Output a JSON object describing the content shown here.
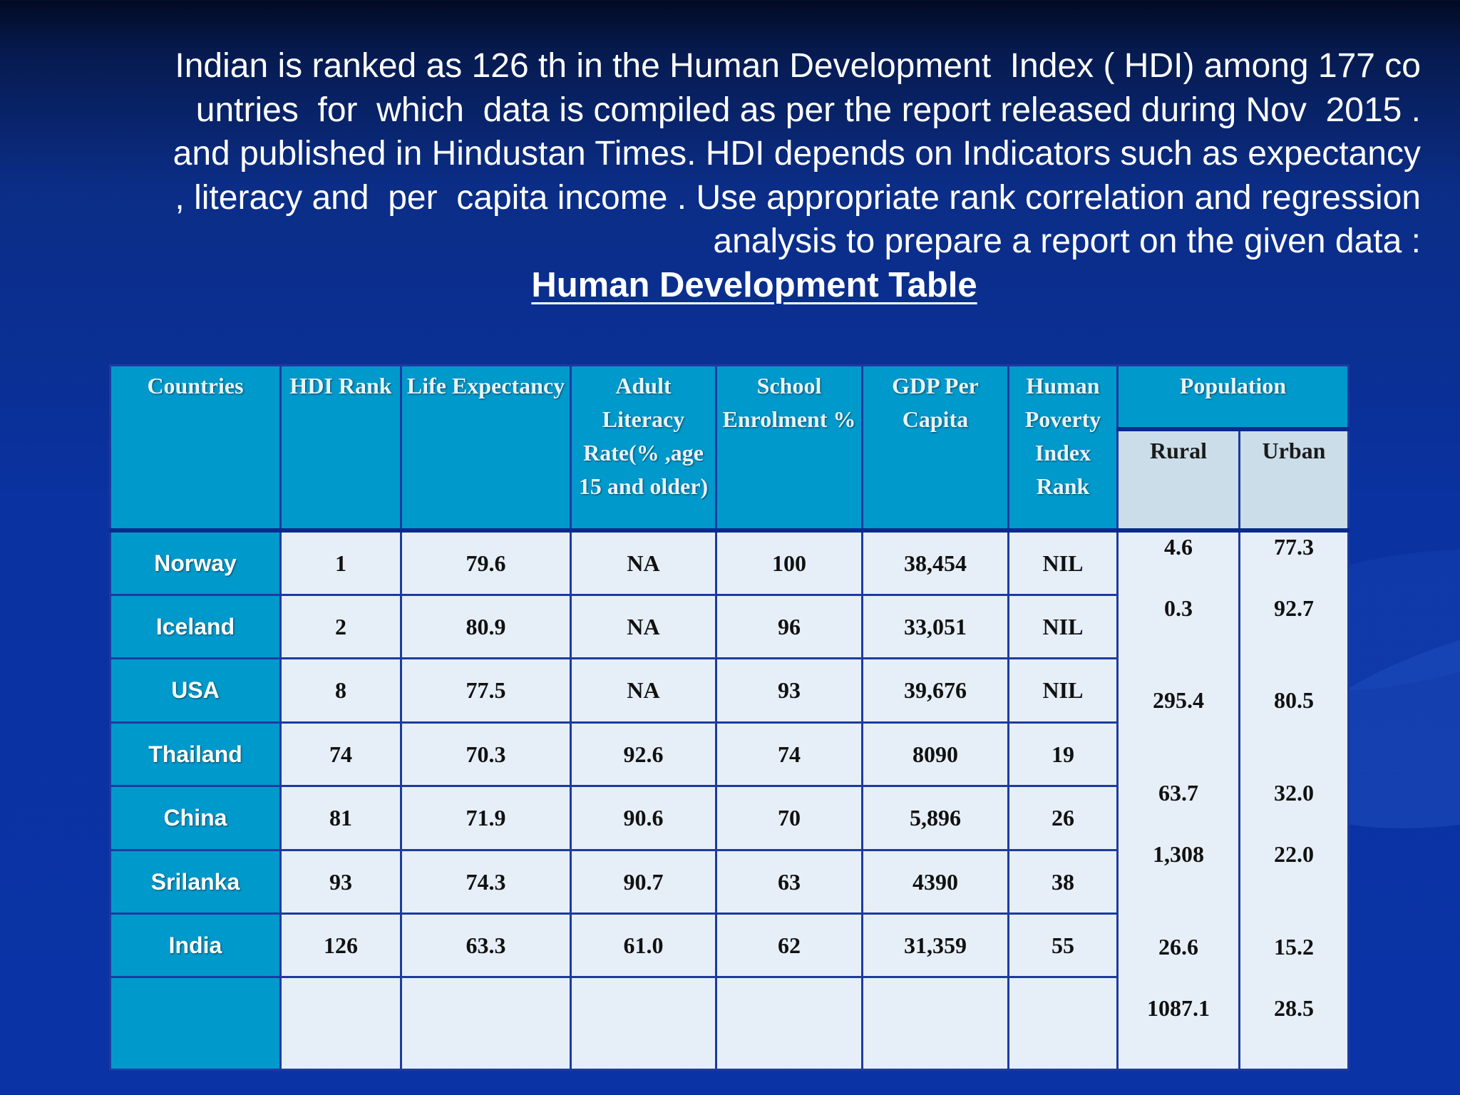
{
  "intro_text": "Indian is ranked as 126 th in the Human Development  Index ( HDI) among 177 co\nuntries  for  which  data is compiled as per the report released during Nov  2015 .\nand published in Hindustan Times. HDI depends on Indicators such as expectancy\n, literacy and  per  capita income . Use appropriate rank correlation and regression\nanalysis to prepare a report on the given data :",
  "table_title": "Human Development Table ",
  "headers": {
    "countries": "Countries",
    "hdi_rank": "HDI Rank",
    "life_expectancy": "Life Expectancy",
    "adult_literacy": "Adult Literacy Rate(% ,age 15 and older)",
    "school_enrolment": "School Enrolment %",
    "gdp_per_capita": "GDP Per Capita",
    "human_poverty": "Human Poverty Index Rank",
    "population": "Population",
    "rural": "Rural",
    "urban": "Urban"
  },
  "countries": [
    "Norway",
    "Iceland",
    "USA",
    "Thailand",
    "China",
    "Srilanka",
    "India"
  ],
  "columns": {
    "hdi_rank": [
      "1",
      "2",
      "8",
      "74",
      "81",
      "93",
      "126"
    ],
    "life_expectancy": [
      "79.6",
      "80.9",
      "77.5",
      "70.3",
      "71.9",
      "74.3",
      "63.3"
    ],
    "adult_literacy": [
      "NA",
      "NA",
      "NA",
      "92.6",
      "90.6",
      "90.7",
      "61.0"
    ],
    "school_enrolment": [
      "100",
      "96",
      "93",
      "74",
      "70",
      "63",
      "62"
    ],
    "gdp_per_capita": [
      "38,454",
      "33,051",
      "39,676",
      "8090",
      "5,896",
      "4390",
      "31,359"
    ],
    "human_poverty": [
      "NIL",
      "NIL",
      "NIL",
      "19",
      "26",
      "38",
      "55"
    ]
  },
  "population_rural": [
    "4.6",
    "0.3",
    "295.4",
    "63.7",
    "1,308",
    "26.6",
    "1087.1"
  ],
  "population_urban": [
    "77.3",
    "92.7",
    "80.5",
    "32.0",
    "22.0",
    "15.2",
    "28.5"
  ],
  "colors": {
    "background": "#0a33a6",
    "header_cell": "#0099cc",
    "data_cell": "#e6eff7",
    "subheader_cell": "#cbdde9",
    "border": "#1e3aa0"
  }
}
